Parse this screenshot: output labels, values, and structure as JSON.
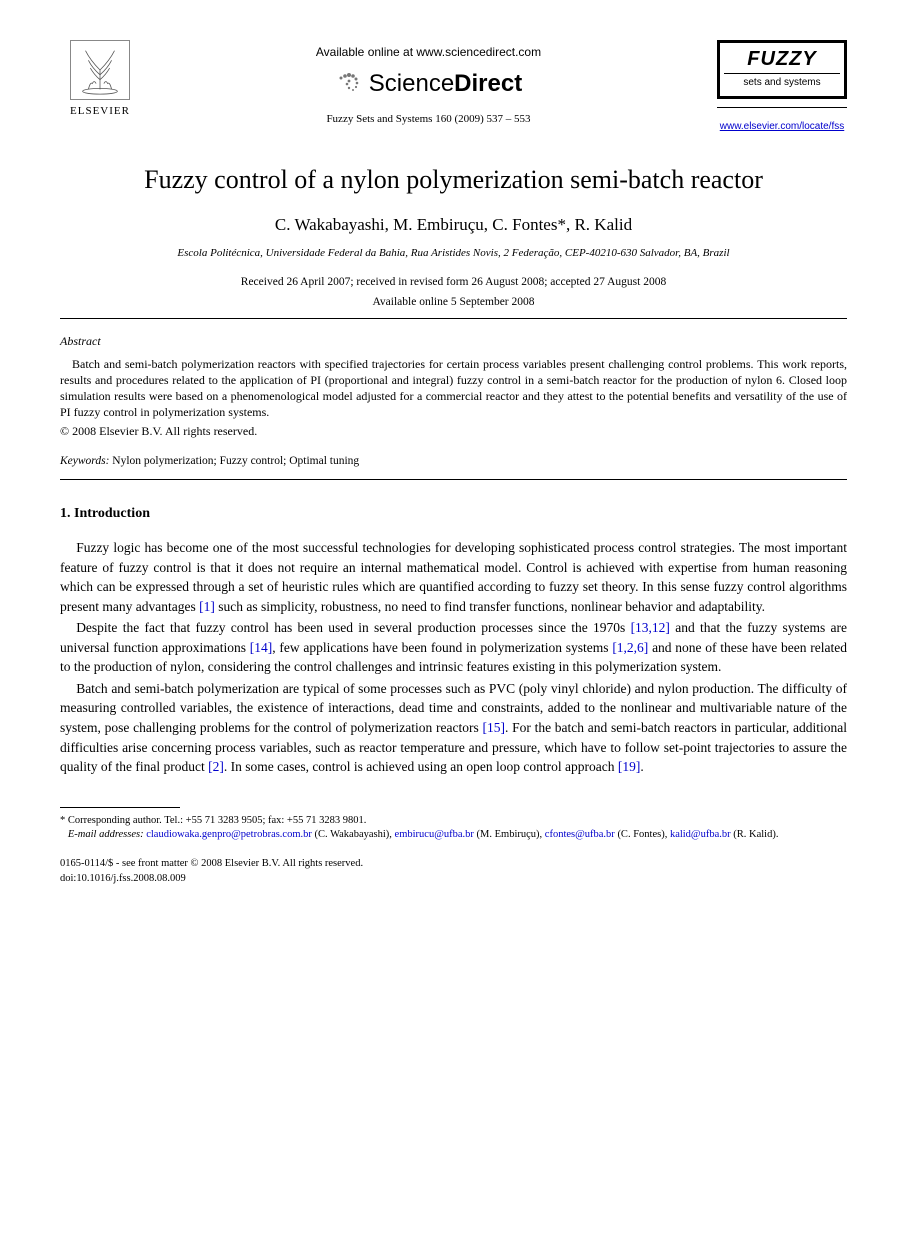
{
  "header": {
    "elsevier_label": "ELSEVIER",
    "available_online": "Available online at www.sciencedirect.com",
    "sciencedirect": {
      "part1": "Science",
      "part2": "Direct"
    },
    "journal_ref": "Fuzzy Sets and Systems  160 (2009) 537 – 553",
    "fuzzy_logo": {
      "title": "FUZZY",
      "subtitle": "sets and systems"
    },
    "journal_link": "www.elsevier.com/locate/fss"
  },
  "title": "Fuzzy control of a nylon polymerization semi-batch reactor",
  "authors": "C. Wakabayashi, M. Embiruçu, C. Fontes*, R. Kalid",
  "affiliation": "Escola Politécnica, Universidade Federal da Bahia, Rua Aristides Novis, 2 Federação, CEP-40210-630 Salvador, BA, Brazil",
  "dates_line1": "Received 26 April 2007; received in revised form 26 August 2008; accepted 27 August 2008",
  "dates_line2": "Available online 5 September 2008",
  "abstract": {
    "label": "Abstract",
    "text": "Batch and semi-batch polymerization reactors with specified trajectories for certain process variables present challenging control problems. This work reports, results and procedures related to the application of PI (proportional and integral) fuzzy control in a semi-batch reactor for the production of nylon 6. Closed loop simulation results were based on a phenomenological model adjusted for a commercial reactor and they attest to the potential benefits and versatility of the use of PI fuzzy control in polymerization systems.",
    "copyright": "© 2008 Elsevier B.V. All rights reserved."
  },
  "keywords": {
    "label": "Keywords:",
    "text": " Nylon polymerization; Fuzzy control; Optimal tuning"
  },
  "section1": {
    "heading": "1. Introduction",
    "p1_a": "Fuzzy logic has become one of the most successful technologies for developing sophisticated process control strategies. The most important feature of fuzzy control is that it does not require an internal mathematical model. Control is achieved with expertise from human reasoning which can be expressed through a set of heuristic rules which are quantified according to fuzzy set theory. In this sense fuzzy control algorithms present many advantages ",
    "p1_cite1": "[1]",
    "p1_b": " such as simplicity, robustness, no need to find transfer functions, nonlinear behavior and adaptability.",
    "p2_a": "Despite the fact that fuzzy control has been used in several production processes since the 1970s ",
    "p2_cite1": "[13,12]",
    "p2_b": " and that the fuzzy systems are universal function approximations ",
    "p2_cite2": "[14]",
    "p2_c": ", few applications have been found in polymerization systems ",
    "p2_cite3": "[1,2,6]",
    "p2_d": " and none of these have been related to the production of nylon, considering the control challenges and intrinsic features existing in this polymerization system.",
    "p3_a": "Batch and semi-batch polymerization are typical of some processes such as PVC (poly vinyl chloride) and nylon production. The difficulty of measuring controlled variables, the existence of interactions, dead time and constraints, added to the nonlinear and multivariable nature of the system, pose challenging problems for the control of polymerization reactors ",
    "p3_cite1": "[15]",
    "p3_b": ". For the batch and semi-batch reactors in particular, additional difficulties arise concerning process variables, such as reactor temperature and pressure, which have to follow set-point trajectories to assure the quality of the final product ",
    "p3_cite2": "[2]",
    "p3_c": ". In some cases, control is achieved using an open loop control approach ",
    "p3_cite3": "[19]",
    "p3_d": "."
  },
  "footnote": {
    "corresponding": "* Corresponding author. Tel.: +55 71 3283 9505; fax: +55 71 3283 9801.",
    "email_label": "E-mail addresses:",
    "emails": [
      {
        "addr": "claudiowaka.genpro@petrobras.com.br",
        "name": "(C. Wakabayashi)"
      },
      {
        "addr": "embirucu@ufba.br",
        "name": "(M. Embiruçu)"
      },
      {
        "addr": "cfontes@ufba.br",
        "name": "(C. Fontes)"
      },
      {
        "addr": "kalid@ufba.br",
        "name": "(R. Kalid)"
      }
    ]
  },
  "bottom": {
    "line1": "0165-0114/$ - see front matter © 2008 Elsevier B.V. All rights reserved.",
    "line2": "doi:10.1016/j.fss.2008.08.009"
  },
  "colors": {
    "link": "#0000cc",
    "text": "#000000",
    "bg": "#ffffff"
  }
}
